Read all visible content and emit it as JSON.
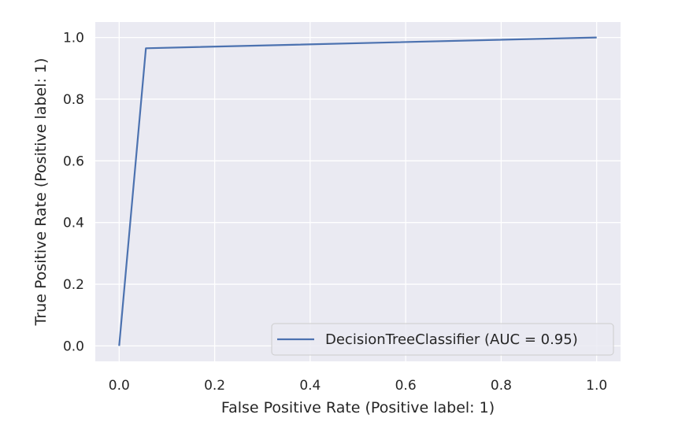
{
  "chart_data": {
    "type": "line",
    "title": "",
    "xlabel": "False Positive Rate (Positive label: 1)",
    "ylabel": "True Positive Rate (Positive label: 1)",
    "xlim": [
      -0.05,
      1.05
    ],
    "ylim": [
      -0.05,
      1.05
    ],
    "xticks": [
      0.0,
      0.2,
      0.4,
      0.6,
      0.8,
      1.0
    ],
    "xtick_labels": [
      "0.0",
      "0.2",
      "0.4",
      "0.6",
      "0.8",
      "1.0"
    ],
    "yticks": [
      0.0,
      0.2,
      0.4,
      0.6,
      0.8,
      1.0
    ],
    "ytick_labels": [
      "0.0",
      "0.2",
      "0.4",
      "0.6",
      "0.8",
      "1.0"
    ],
    "grid": true,
    "background": "#eaeaf2",
    "legend_position": "lower right",
    "series": [
      {
        "name": "DecisionTreeClassifier (AUC = 0.95)",
        "color": "#4c72b0",
        "x": [
          0.0,
          0.056,
          1.0
        ],
        "y": [
          0.0,
          0.965,
          1.0
        ]
      }
    ]
  }
}
